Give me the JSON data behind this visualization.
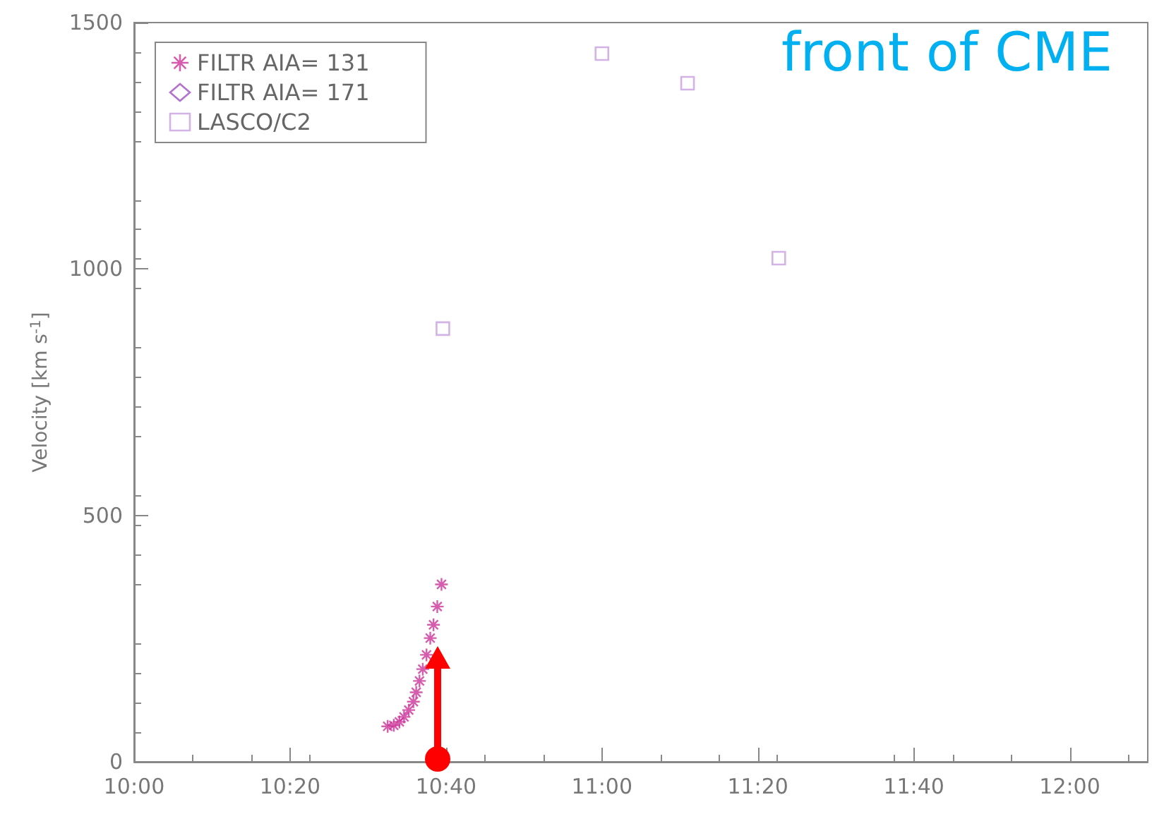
{
  "chart_data": {
    "type": "scatter",
    "ylabel": "Velocity [km s$^{-1}$]",
    "xlim": [
      10,
      12.1667
    ],
    "xticks": [
      {
        "value": 10,
        "label": "10:00"
      },
      {
        "value": 10.3333,
        "label": "10:20"
      },
      {
        "value": 10.6667,
        "label": "10:40"
      },
      {
        "value": 11,
        "label": "11:00"
      },
      {
        "value": 11.3333,
        "label": "11:20"
      },
      {
        "value": 11.6667,
        "label": "11:40"
      },
      {
        "value": 12,
        "label": "12:00"
      }
    ],
    "ylim": [
      0,
      1500
    ],
    "yticks": [
      0,
      500,
      1000,
      1500
    ],
    "grid": false,
    "legend": "top left",
    "annotations": [
      "front of CME"
    ],
    "series": [
      {
        "name": "FILTR AIA= 131",
        "color": "#cc3399",
        "marker": "cross",
        "x": [
          10.542,
          10.555,
          10.567,
          10.577,
          10.587,
          10.597,
          10.603,
          10.61,
          10.617,
          10.625,
          10.633,
          10.64,
          10.648,
          10.657
        ],
        "values": [
          72,
          74,
          81,
          91,
          105,
          122,
          141,
          164,
          188,
          217,
          251,
          278,
          315,
          360
        ]
      },
      {
        "name": "FILTR AIA= 171",
        "color": "#a050c0",
        "marker": "diamond"
      },
      {
        "name": "LASCO/C2",
        "color": "#c8a0e0",
        "marker": "square",
        "x": [
          10.66,
          11.0,
          11.183,
          11.378
        ],
        "values": [
          879,
          1437,
          1377,
          1022
        ]
      }
    ]
  }
}
